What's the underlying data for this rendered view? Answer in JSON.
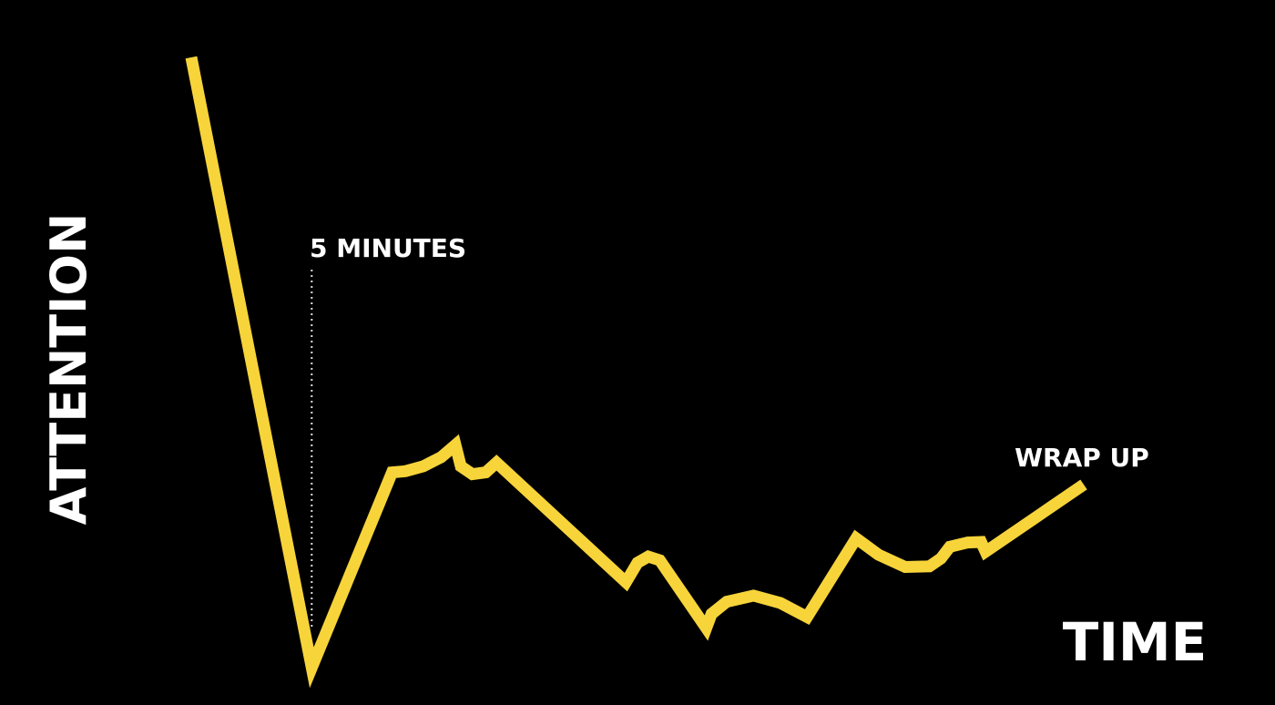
{
  "chart_data": {
    "type": "line",
    "title": "",
    "xlabel": "TIME",
    "ylabel": "ATTENTION",
    "grid": false,
    "legend": "none",
    "axes_visible": false,
    "colors": {
      "background": "#000000",
      "line": "#f7d43a",
      "text": "#ffffff",
      "marker_line": "#dddddd"
    },
    "xlim": [
      0,
      100
    ],
    "ylim": [
      0,
      100
    ],
    "series": [
      {
        "values": [
          {
            "x": 0.0,
            "y": 100.0
          },
          {
            "x": 13.5,
            "y": 0.0
          },
          {
            "x": 22.5,
            "y": 32.0
          },
          {
            "x": 24.0,
            "y": 32.2
          },
          {
            "x": 26.0,
            "y": 33.0
          },
          {
            "x": 28.0,
            "y": 34.5
          },
          {
            "x": 29.6,
            "y": 36.5
          },
          {
            "x": 30.2,
            "y": 33.0
          },
          {
            "x": 31.5,
            "y": 31.7
          },
          {
            "x": 33.0,
            "y": 32.0
          },
          {
            "x": 34.2,
            "y": 33.6
          },
          {
            "x": 48.7,
            "y": 14.0
          },
          {
            "x": 50.0,
            "y": 17.2
          },
          {
            "x": 51.2,
            "y": 18.2
          },
          {
            "x": 52.5,
            "y": 17.6
          },
          {
            "x": 57.7,
            "y": 6.5
          },
          {
            "x": 58.3,
            "y": 8.8
          },
          {
            "x": 60.0,
            "y": 10.8
          },
          {
            "x": 63.0,
            "y": 11.8
          },
          {
            "x": 66.0,
            "y": 10.6
          },
          {
            "x": 69.0,
            "y": 8.3
          },
          {
            "x": 74.5,
            "y": 21.2
          },
          {
            "x": 77.0,
            "y": 18.5
          },
          {
            "x": 80.0,
            "y": 16.5
          },
          {
            "x": 82.7,
            "y": 16.6
          },
          {
            "x": 84.0,
            "y": 17.9
          },
          {
            "x": 85.0,
            "y": 19.8
          },
          {
            "x": 87.0,
            "y": 20.5
          },
          {
            "x": 88.5,
            "y": 20.6
          },
          {
            "x": 89.0,
            "y": 19.0
          },
          {
            "x": 100.0,
            "y": 30.0
          }
        ]
      }
    ],
    "annotations": [
      {
        "text": "5 MINUTES",
        "x": 13.5,
        "type": "vertical-dotted-line"
      },
      {
        "text": "WRAP UP",
        "x": 100.0,
        "type": "label"
      }
    ]
  }
}
